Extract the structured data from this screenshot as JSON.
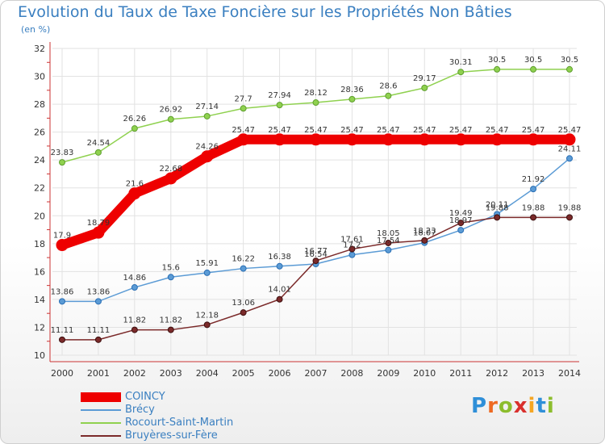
{
  "header": {
    "title": "Evolution du Taux de Taxe Foncière sur les Propriétés Non Bâties",
    "subtitle": "(en %)"
  },
  "logo": {
    "letters": [
      "P",
      "r",
      "o",
      "x",
      "i",
      "t",
      "i"
    ],
    "colors": [
      "#2f8fd8",
      "#ee6a22",
      "#8cbd2d",
      "#d9302d",
      "#f5a623",
      "#2f8fd8",
      "#8cbd2d"
    ]
  },
  "chart_data": {
    "type": "line",
    "title": "Evolution du Taux de Taxe Foncière sur les Propriétés Non Bâties",
    "subtitle": "(en %)",
    "x": [
      "2000",
      "2001",
      "2002",
      "2003",
      "2004",
      "2005",
      "2006",
      "2007",
      "2008",
      "2009",
      "2010",
      "2011",
      "2012",
      "2013",
      "2014"
    ],
    "ylim": [
      10,
      32
    ],
    "yticks": [
      10,
      12,
      14,
      16,
      18,
      20,
      22,
      24,
      26,
      28,
      30,
      32
    ],
    "grid": true,
    "legend_position": "bottom-left",
    "series": [
      {
        "name": "COINCY",
        "color": "#ee0000",
        "values": [
          17.9,
          18.79,
          21.6,
          22.68,
          24.26,
          25.47,
          25.47,
          25.47,
          25.47,
          25.47,
          25.47,
          25.47,
          25.47,
          25.47,
          25.47
        ],
        "labels": [
          "17.9",
          "18.79",
          "21.6",
          "22.68",
          "24.26",
          "25.47",
          "25.47",
          "25.47",
          "25.47",
          "25.47",
          "25.47",
          "25.47",
          "25.47",
          "25.47",
          "25.47"
        ]
      },
      {
        "name": "Brécy",
        "color": "#5b9bd5",
        "values": [
          13.86,
          13.86,
          14.86,
          15.6,
          15.91,
          16.22,
          16.38,
          16.54,
          17.2,
          17.54,
          18.07,
          18.97,
          20.11,
          21.92,
          24.11
        ],
        "labels": [
          "13.86",
          "13.86",
          "14.86",
          "15.6",
          "15.91",
          "16.22",
          "16.38",
          "16.54",
          "17.2",
          "17.54",
          "18.07",
          "18.97",
          "20.11",
          "21.92",
          "24.11"
        ]
      },
      {
        "name": "Rocourt-Saint-Martin",
        "color": "#8fd14f",
        "values": [
          23.83,
          24.54,
          26.26,
          26.92,
          27.14,
          27.7,
          27.94,
          28.12,
          28.36,
          28.6,
          29.17,
          30.31,
          30.5,
          30.5,
          30.5
        ],
        "labels": [
          "23.83",
          "24.54",
          "26.26",
          "26.92",
          "27.14",
          "27.7",
          "27.94",
          "28.12",
          "28.36",
          "28.6",
          "29.17",
          "30.31",
          "30.5",
          "30.5",
          "30.5"
        ]
      },
      {
        "name": "Bruyères-sur-Fère",
        "color": "#7b2a2a",
        "values": [
          11.11,
          11.11,
          11.82,
          11.82,
          12.18,
          13.06,
          14.01,
          16.77,
          17.61,
          18.05,
          18.23,
          19.49,
          19.88,
          19.88,
          19.88
        ],
        "labels": [
          "11.11",
          "11.11",
          "11.82",
          "11.82",
          "12.18",
          "13.06",
          "14.01",
          "16.77",
          "17.61",
          "18.05",
          "18.23",
          "19.49",
          "19.88",
          "19.88",
          "19.88"
        ]
      }
    ]
  }
}
